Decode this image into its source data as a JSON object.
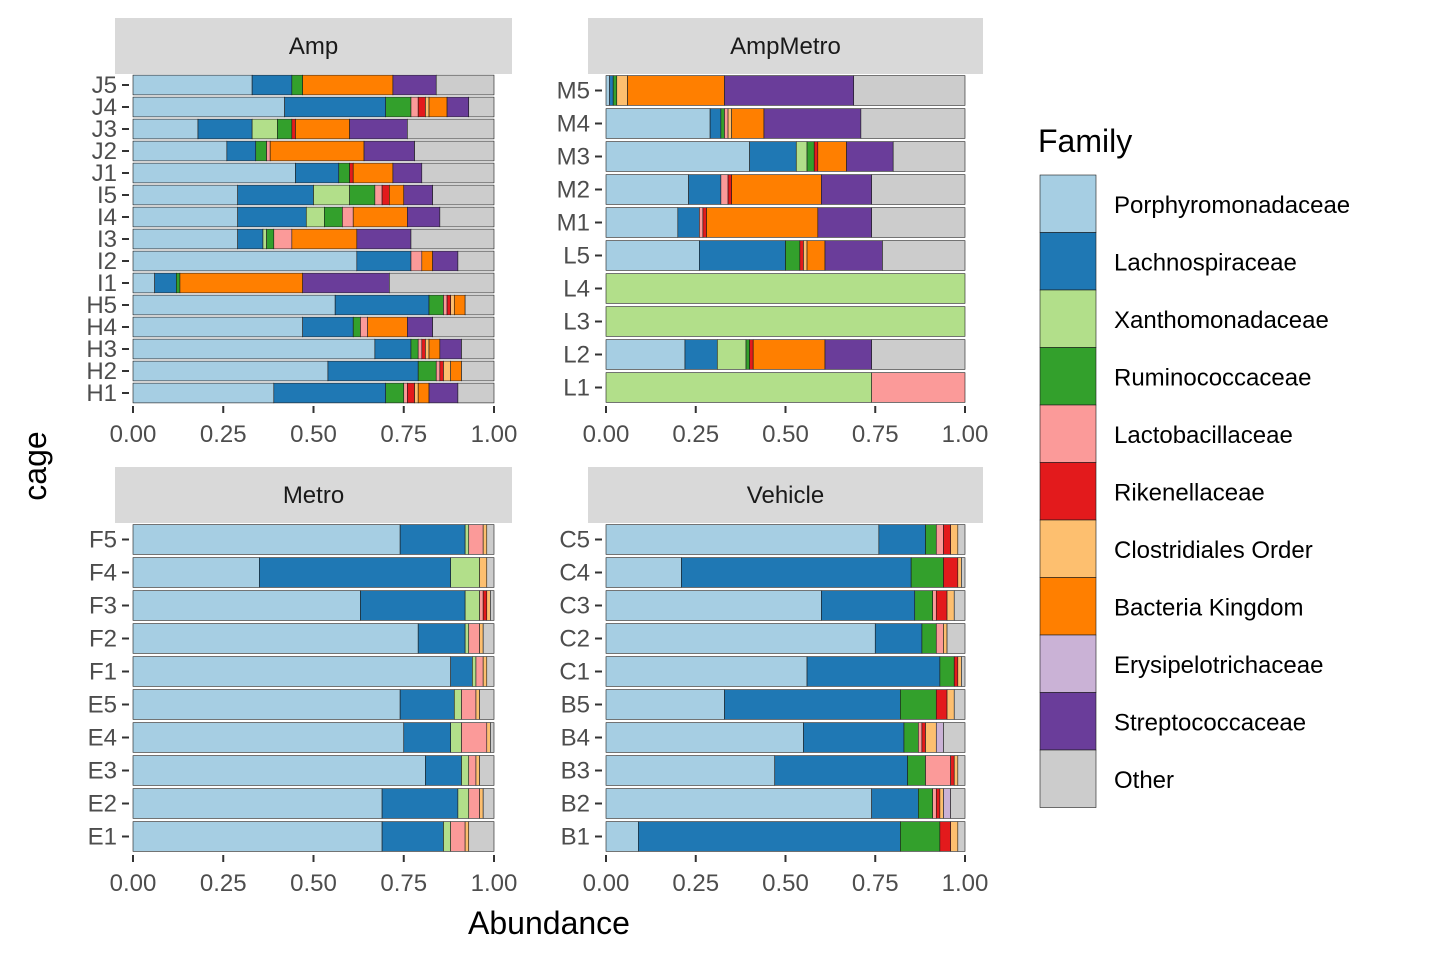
{
  "chart_data": {
    "type": "bar",
    "orientation": "horizontal",
    "stacked": true,
    "facet_by": "treatment",
    "xlabel": "Abundance",
    "ylabel": "cage",
    "xlim": [
      0,
      1
    ],
    "x_ticks": [
      "0.00",
      "0.25",
      "0.50",
      "0.75",
      "1.00"
    ],
    "legend_title": "Family",
    "legend_placement": "right",
    "series": [
      {
        "name": "Porphyromonadaceae",
        "color": "#a6cee3"
      },
      {
        "name": "Lachnospiraceae",
        "color": "#1f78b4"
      },
      {
        "name": "Xanthomonadaceae",
        "color": "#b2df8a"
      },
      {
        "name": "Ruminococcaceae",
        "color": "#33a02c"
      },
      {
        "name": "Lactobacillaceae",
        "color": "#fb9a99"
      },
      {
        "name": "Rikenellaceae",
        "color": "#e31a1c"
      },
      {
        "name": "Clostridiales Order",
        "color": "#fdbf6f"
      },
      {
        "name": "Bacteria Kingdom",
        "color": "#ff7f00"
      },
      {
        "name": "Erysipelotrichaceae",
        "color": "#cab2d6"
      },
      {
        "name": "Streptococcaceae",
        "color": "#6a3d9a"
      },
      {
        "name": "Other",
        "color": "#cccccc"
      }
    ],
    "facets": [
      {
        "title": "Amp",
        "categories": [
          "H1",
          "H2",
          "H3",
          "H4",
          "H5",
          "I1",
          "I2",
          "I3",
          "I4",
          "I5",
          "J1",
          "J2",
          "J3",
          "J4",
          "J5"
        ],
        "bars": [
          [
            0.39,
            0.31,
            0.0,
            0.05,
            0.01,
            0.02,
            0.01,
            0.03,
            0.0,
            0.08,
            0.1
          ],
          [
            0.54,
            0.25,
            0.0,
            0.05,
            0.01,
            0.01,
            0.02,
            0.03,
            0.0,
            0.0,
            0.09
          ],
          [
            0.67,
            0.1,
            0.0,
            0.02,
            0.01,
            0.01,
            0.01,
            0.03,
            0.0,
            0.06,
            0.09
          ],
          [
            0.47,
            0.14,
            0.0,
            0.02,
            0.02,
            0.0,
            0.0,
            0.11,
            0.0,
            0.07,
            0.17
          ],
          [
            0.56,
            0.26,
            0.0,
            0.04,
            0.01,
            0.01,
            0.01,
            0.03,
            0.0,
            0.0,
            0.08
          ],
          [
            0.06,
            0.06,
            0.0,
            0.01,
            0.0,
            0.0,
            0.0,
            0.34,
            0.0,
            0.24,
            0.29
          ],
          [
            0.62,
            0.15,
            0.0,
            0.0,
            0.03,
            0.0,
            0.0,
            0.03,
            0.0,
            0.07,
            0.1
          ],
          [
            0.29,
            0.07,
            0.01,
            0.02,
            0.05,
            0.0,
            0.0,
            0.18,
            0.0,
            0.15,
            0.23
          ],
          [
            0.29,
            0.19,
            0.05,
            0.05,
            0.03,
            0.0,
            0.0,
            0.15,
            0.0,
            0.09,
            0.15
          ],
          [
            0.29,
            0.21,
            0.1,
            0.07,
            0.02,
            0.02,
            0.0,
            0.04,
            0.0,
            0.08,
            0.17
          ],
          [
            0.45,
            0.12,
            0.0,
            0.03,
            0.0,
            0.01,
            0.0,
            0.11,
            0.0,
            0.08,
            0.2
          ],
          [
            0.26,
            0.08,
            0.0,
            0.03,
            0.01,
            0.0,
            0.0,
            0.26,
            0.0,
            0.14,
            0.22
          ],
          [
            0.18,
            0.15,
            0.07,
            0.04,
            0.0,
            0.01,
            0.0,
            0.15,
            0.0,
            0.16,
            0.24
          ],
          [
            0.42,
            0.28,
            0.0,
            0.07,
            0.02,
            0.02,
            0.01,
            0.05,
            0.0,
            0.06,
            0.07
          ],
          [
            0.33,
            0.11,
            0.0,
            0.03,
            0.0,
            0.0,
            0.0,
            0.25,
            0.0,
            0.12,
            0.16
          ]
        ]
      },
      {
        "title": "AmpMetro",
        "categories": [
          "L1",
          "L2",
          "L3",
          "L4",
          "L5",
          "M1",
          "M2",
          "M3",
          "M4",
          "M5"
        ],
        "bars": [
          [
            0.0,
            0.0,
            0.74,
            0.0,
            0.26,
            0.0,
            0.0,
            0.0,
            0.0,
            0.0,
            0.0
          ],
          [
            0.22,
            0.09,
            0.08,
            0.01,
            0.0,
            0.01,
            0.0,
            0.2,
            0.0,
            0.13,
            0.26
          ],
          [
            0.0,
            0.0,
            1.0,
            0.0,
            0.0,
            0.0,
            0.0,
            0.0,
            0.0,
            0.0,
            0.0
          ],
          [
            0.0,
            0.0,
            1.0,
            0.0,
            0.0,
            0.0,
            0.0,
            0.0,
            0.0,
            0.0,
            0.0
          ],
          [
            0.26,
            0.24,
            0.0,
            0.04,
            0.0,
            0.01,
            0.01,
            0.05,
            0.0,
            0.16,
            0.23
          ],
          [
            0.2,
            0.06,
            0.0,
            0.0,
            0.01,
            0.01,
            0.0,
            0.31,
            0.0,
            0.15,
            0.26
          ],
          [
            0.23,
            0.09,
            0.0,
            0.0,
            0.02,
            0.01,
            0.0,
            0.25,
            0.0,
            0.14,
            0.26
          ],
          [
            0.4,
            0.13,
            0.03,
            0.02,
            0.0,
            0.01,
            0.0,
            0.08,
            0.0,
            0.13,
            0.2
          ],
          [
            0.29,
            0.03,
            0.0,
            0.01,
            0.01,
            0.0,
            0.01,
            0.09,
            0.0,
            0.27,
            0.29
          ],
          [
            0.01,
            0.01,
            0.0,
            0.01,
            0.0,
            0.0,
            0.03,
            0.27,
            0.0,
            0.36,
            0.31
          ]
        ]
      },
      {
        "title": "Metro",
        "categories": [
          "E1",
          "E2",
          "E3",
          "E4",
          "E5",
          "F1",
          "F2",
          "F3",
          "F4",
          "F5"
        ],
        "bars": [
          [
            0.69,
            0.17,
            0.02,
            0.0,
            0.04,
            0.0,
            0.01,
            0.0,
            0.0,
            0.0,
            0.07
          ],
          [
            0.69,
            0.21,
            0.03,
            0.0,
            0.03,
            0.0,
            0.01,
            0.0,
            0.0,
            0.0,
            0.03
          ],
          [
            0.81,
            0.1,
            0.02,
            0.0,
            0.02,
            0.0,
            0.01,
            0.0,
            0.0,
            0.0,
            0.04
          ],
          [
            0.75,
            0.13,
            0.03,
            0.0,
            0.07,
            0.0,
            0.01,
            0.0,
            0.0,
            0.0,
            0.01
          ],
          [
            0.74,
            0.15,
            0.02,
            0.0,
            0.04,
            0.0,
            0.01,
            0.0,
            0.0,
            0.0,
            0.04
          ],
          [
            0.88,
            0.06,
            0.01,
            0.0,
            0.02,
            0.0,
            0.01,
            0.0,
            0.0,
            0.0,
            0.02
          ],
          [
            0.79,
            0.13,
            0.01,
            0.0,
            0.03,
            0.0,
            0.01,
            0.0,
            0.0,
            0.0,
            0.03
          ],
          [
            0.63,
            0.29,
            0.04,
            0.0,
            0.01,
            0.01,
            0.01,
            0.0,
            0.0,
            0.0,
            0.01
          ],
          [
            0.35,
            0.53,
            0.08,
            0.0,
            0.0,
            0.0,
            0.02,
            0.0,
            0.0,
            0.0,
            0.02
          ],
          [
            0.74,
            0.18,
            0.01,
            0.0,
            0.04,
            0.0,
            0.01,
            0.0,
            0.0,
            0.0,
            0.02
          ]
        ]
      },
      {
        "title": "Vehicle",
        "categories": [
          "B1",
          "B2",
          "B3",
          "B4",
          "B5",
          "C1",
          "C2",
          "C3",
          "C4",
          "C5"
        ],
        "bars": [
          [
            0.09,
            0.73,
            0.0,
            0.11,
            0.0,
            0.03,
            0.02,
            0.0,
            0.0,
            0.0,
            0.02
          ],
          [
            0.74,
            0.13,
            0.0,
            0.04,
            0.01,
            0.01,
            0.01,
            0.0,
            0.02,
            0.0,
            0.04
          ],
          [
            0.47,
            0.37,
            0.0,
            0.05,
            0.07,
            0.01,
            0.01,
            0.0,
            0.0,
            0.0,
            0.02
          ],
          [
            0.55,
            0.28,
            0.0,
            0.04,
            0.01,
            0.01,
            0.03,
            0.0,
            0.02,
            0.0,
            0.06
          ],
          [
            0.33,
            0.49,
            0.0,
            0.1,
            0.0,
            0.03,
            0.02,
            0.0,
            0.0,
            0.0,
            0.03
          ],
          [
            0.56,
            0.37,
            0.0,
            0.04,
            0.0,
            0.01,
            0.01,
            0.0,
            0.0,
            0.0,
            0.01
          ],
          [
            0.75,
            0.13,
            0.0,
            0.04,
            0.02,
            0.0,
            0.01,
            0.0,
            0.0,
            0.0,
            0.05
          ],
          [
            0.6,
            0.26,
            0.0,
            0.05,
            0.01,
            0.03,
            0.02,
            0.0,
            0.0,
            0.0,
            0.03
          ],
          [
            0.21,
            0.64,
            0.0,
            0.09,
            0.0,
            0.04,
            0.01,
            0.0,
            0.0,
            0.0,
            0.01
          ],
          [
            0.76,
            0.13,
            0.0,
            0.03,
            0.02,
            0.02,
            0.02,
            0.0,
            0.0,
            0.0,
            0.02
          ]
        ]
      }
    ]
  }
}
